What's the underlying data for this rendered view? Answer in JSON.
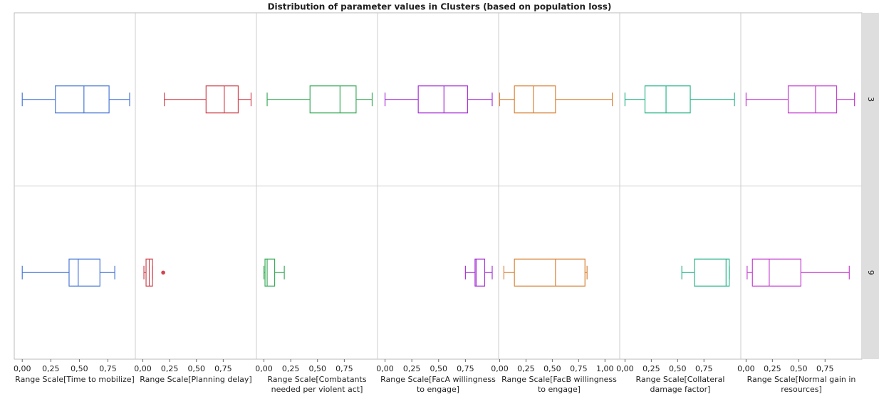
{
  "chart_data": {
    "type": "box",
    "title": "Distribution of parameter values in Clusters (based on population loss)",
    "rows": [
      "3",
      "9"
    ],
    "panels": [
      {
        "label": "Range Scale[Time to mobilize]",
        "color": "#4a78d6",
        "xlim": [
          -0.07,
          0.99
        ],
        "xticks": [
          {
            "value": 0,
            "label": "0,00"
          },
          {
            "value": 0.25,
            "label": "0,25"
          },
          {
            "value": 0.5,
            "label": "0,50"
          },
          {
            "value": 0.75,
            "label": "0,75"
          }
        ],
        "boxes": [
          {
            "min": 0,
            "q1": 0.29,
            "median": 0.54,
            "q3": 0.76,
            "max": 0.94
          },
          {
            "min": 0,
            "q1": 0.41,
            "median": 0.49,
            "q3": 0.68,
            "max": 0.81
          }
        ]
      },
      {
        "label": "Range Scale[Planning delay]",
        "color": "#d0454f",
        "xlim": [
          -0.07,
          1.06
        ],
        "xticks": [
          {
            "value": 0,
            "label": "0,00"
          },
          {
            "value": 0.25,
            "label": "0,25"
          },
          {
            "value": 0.5,
            "label": "0,50"
          },
          {
            "value": 0.75,
            "label": "0,75"
          }
        ],
        "boxes": [
          {
            "min": 0.2,
            "q1": 0.59,
            "median": 0.76,
            "q3": 0.89,
            "max": 1.01
          },
          {
            "min": 0.01,
            "q1": 0.03,
            "median": 0.06,
            "q3": 0.09,
            "max": 0.09,
            "outliers": [
              0.19
            ]
          }
        ]
      },
      {
        "label": "Range Scale[Combatants needed per violent act]",
        "color": "#3bab5a",
        "xlim": [
          -0.07,
          1.06
        ],
        "xticks": [
          {
            "value": 0,
            "label": "0,00"
          },
          {
            "value": 0.25,
            "label": "0,25"
          },
          {
            "value": 0.5,
            "label": "0,50"
          },
          {
            "value": 0.75,
            "label": "0,75"
          }
        ],
        "boxes": [
          {
            "min": 0.03,
            "q1": 0.43,
            "median": 0.71,
            "q3": 0.86,
            "max": 1.01
          },
          {
            "min": 0,
            "q1": 0.01,
            "median": 0.03,
            "q3": 0.1,
            "max": 0.19
          }
        ]
      },
      {
        "label": "Range Scale[FacA willingness to engage]",
        "color": "#a733d4",
        "xlim": [
          -0.07,
          1.06
        ],
        "xticks": [
          {
            "value": 0,
            "label": "0,00"
          },
          {
            "value": 0.25,
            "label": "0,25"
          },
          {
            "value": 0.5,
            "label": "0,50"
          },
          {
            "value": 0.75,
            "label": "0,75"
          }
        ],
        "boxes": [
          {
            "min": 0,
            "q1": 0.31,
            "median": 0.55,
            "q3": 0.77,
            "max": 1.0
          },
          {
            "min": 0.75,
            "q1": 0.84,
            "median": 0.85,
            "q3": 0.93,
            "max": 1.0
          }
        ]
      },
      {
        "label": "Range Scale[FacB willingness to engage]",
        "color": "#d9843a",
        "xlim": [
          -0.01,
          1.14
        ],
        "xticks": [
          {
            "value": 0,
            "label": "0,00"
          },
          {
            "value": 0.25,
            "label": "0,25"
          },
          {
            "value": 0.5,
            "label": "0,50"
          },
          {
            "value": 0.75,
            "label": "0,75"
          },
          {
            "value": 1,
            "label": "1,00"
          }
        ],
        "boxes": [
          {
            "min": 0,
            "q1": 0.14,
            "median": 0.32,
            "q3": 0.53,
            "max": 1.07
          },
          {
            "min": 0.04,
            "q1": 0.14,
            "median": 0.53,
            "q3": 0.81,
            "max": 0.83
          }
        ]
      },
      {
        "label": "Range Scale[Collateral damage factor]",
        "color": "#2bb58c",
        "xlim": [
          -0.05,
          1.1
        ],
        "xticks": [
          {
            "value": 0,
            "label": "0,00"
          },
          {
            "value": 0.25,
            "label": "0,25"
          },
          {
            "value": 0.5,
            "label": "0,50"
          },
          {
            "value": 0.75,
            "label": "0,75"
          }
        ],
        "boxes": [
          {
            "min": 0,
            "q1": 0.19,
            "median": 0.39,
            "q3": 0.62,
            "max": 1.04
          },
          {
            "min": 0.54,
            "q1": 0.66,
            "median": 0.96,
            "q3": 0.99,
            "max": 0.99
          }
        ]
      },
      {
        "label": "Range Scale[Normal gain in resources]",
        "color": "#c53fd0",
        "xlim": [
          -0.05,
          1.1
        ],
        "xticks": [
          {
            "value": 0,
            "label": "0,00"
          },
          {
            "value": 0.25,
            "label": "0,25"
          },
          {
            "value": 0.5,
            "label": "0,50"
          },
          {
            "value": 0.75,
            "label": "0,75"
          }
        ],
        "boxes": [
          {
            "min": 0,
            "q1": 0.4,
            "median": 0.66,
            "q3": 0.86,
            "max": 1.03
          },
          {
            "min": 0.01,
            "q1": 0.06,
            "median": 0.22,
            "q3": 0.52,
            "max": 0.98
          }
        ]
      }
    ]
  }
}
